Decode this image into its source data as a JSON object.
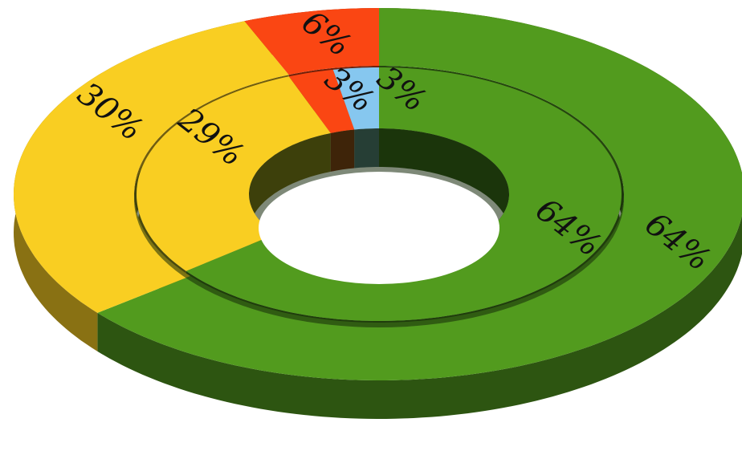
{
  "chart_data": {
    "type": "pie",
    "series": [
      {
        "ring": "outer",
        "values": [
          64,
          30,
          6
        ],
        "labels": [
          "64%",
          "30%",
          "6%"
        ],
        "colors": [
          "#529b1e",
          "#f9ce22",
          "#fa4613"
        ]
      },
      {
        "ring": "inner",
        "values": [
          64,
          29,
          3,
          3
        ],
        "labels": [
          "64%",
          "29%",
          "3%",
          "3%"
        ],
        "colors": [
          "#529b1e",
          "#f9ce22",
          "#fa4613",
          "#86c7ef"
        ]
      }
    ],
    "title": "",
    "legend": "none"
  }
}
